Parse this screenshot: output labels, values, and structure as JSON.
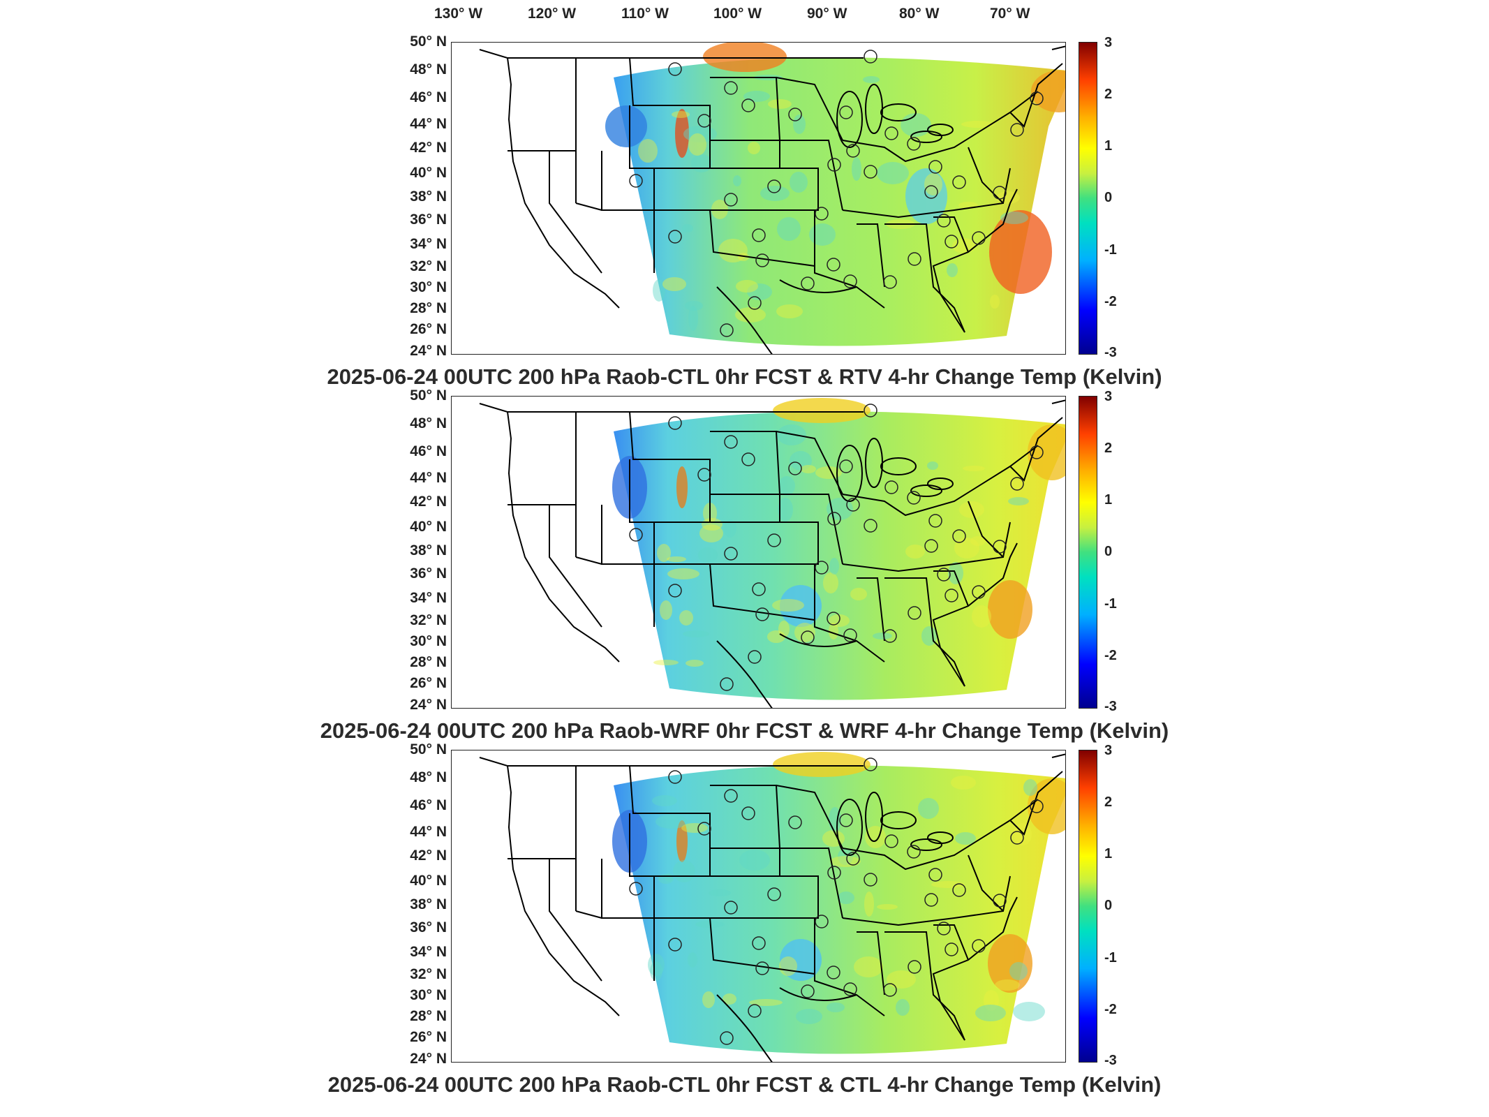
{
  "figure": {
    "lon_labels": [
      "130° W",
      "120° W",
      "110° W",
      "100° W",
      "90° W",
      "80° W",
      "70° W"
    ],
    "lat_labels": [
      "50° N",
      "48° N",
      "46° N",
      "44° N",
      "42° N",
      "40° N",
      "38° N",
      "36° N",
      "34° N",
      "32° N",
      "30° N",
      "28° N",
      "26° N",
      "24° N"
    ],
    "colorbar": {
      "ticks": [
        "3",
        "2",
        "1",
        "0",
        "-1",
        "-2",
        "-3"
      ],
      "range": [
        -3,
        3
      ],
      "colormap": "jet"
    },
    "panels": [
      {
        "title": "2025-06-24 00UTC 200 hPa Raob-CTL 0hr FCST & RTV 4-hr Change Temp (Kelvin)"
      },
      {
        "title": "2025-06-24 00UTC 200 hPa Raob-WRF 0hr FCST & WRF 4-hr Change Temp (Kelvin)"
      },
      {
        "title": "2025-06-24 00UTC 200 hPa Raob-CTL 0hr FCST & CTL 4-hr Change Temp (Kelvin)"
      }
    ]
  },
  "colors": {
    "field_base": "#9be86a",
    "field_warm": "#f5c020",
    "field_cool": "#3fc8e8",
    "boundaries": "#000000"
  }
}
